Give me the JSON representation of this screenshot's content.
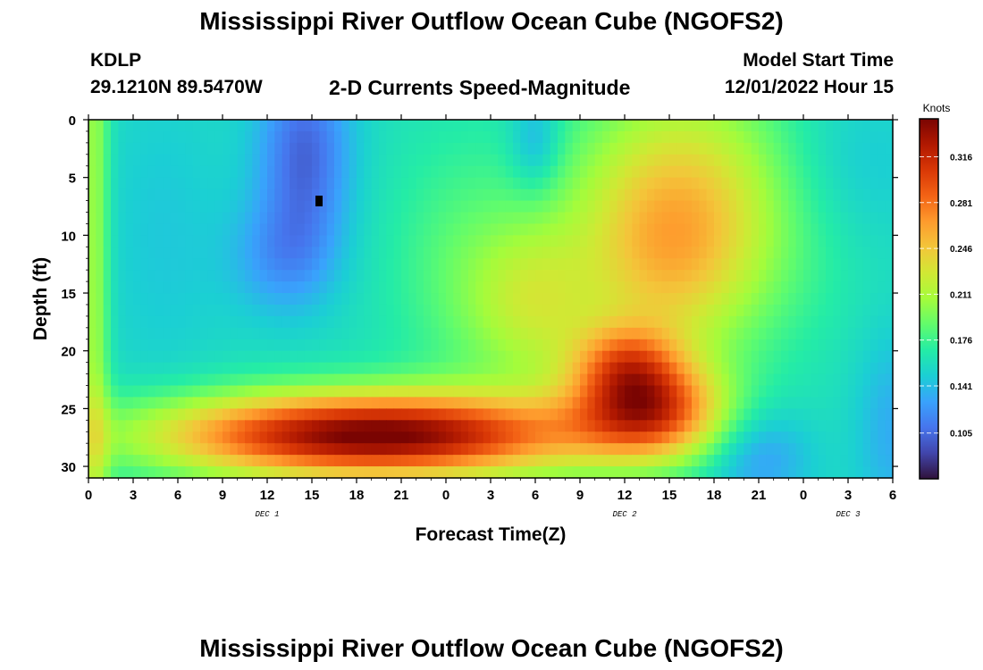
{
  "page": {
    "title": "Mississippi River Outflow Ocean Cube (NGOFS2)",
    "title_repeat": "Mississippi River Outflow Ocean Cube (NGOFS2)"
  },
  "header": {
    "station": "KDLP",
    "coords": "29.1210N  89.5470W",
    "chart_title": "2-D Currents Speed-Magnitude",
    "model_label": "Model Start Time",
    "model_time": "12/01/2022 Hour 15"
  },
  "chart_data": {
    "type": "heatmap",
    "title": "2-D Currents Speed-Magnitude",
    "xlabel": "Forecast Time(Z)",
    "ylabel": "Depth (ft)",
    "x_ticks": [
      "0",
      "3",
      "6",
      "9",
      "12",
      "15",
      "18",
      "21",
      "0",
      "3",
      "6",
      "9",
      "12",
      "15",
      "18",
      "21",
      "0",
      "3",
      "6"
    ],
    "x_range_hours": [
      0,
      54
    ],
    "y_ticks": [
      "0",
      "5",
      "10",
      "15",
      "20",
      "25",
      "30"
    ],
    "y_range_ft": [
      0,
      31
    ],
    "date_labels": [
      {
        "label": "DEC 1",
        "hour": 12
      },
      {
        "label": "DEC 2",
        "hour": 36
      },
      {
        "label": "DEC 3",
        "hour": 51
      }
    ],
    "colorbar": {
      "label": "Knots",
      "ticks": [
        "0.316",
        "0.281",
        "0.246",
        "0.211",
        "0.176",
        "0.141",
        "0.105"
      ],
      "tick_values": [
        0.316,
        0.281,
        0.246,
        0.211,
        0.176,
        0.141,
        0.105
      ],
      "range": [
        0.07,
        0.345
      ],
      "colors": [
        "#30123b",
        "#4145ab",
        "#4675ed",
        "#39a2fc",
        "#1bcfd4",
        "#24eca6",
        "#61fc6c",
        "#a4fc3b",
        "#d1e834",
        "#f3c63a",
        "#fe9b2d",
        "#f36315",
        "#d93806",
        "#b11901",
        "#7a0402"
      ]
    },
    "field_hint": "speed (knots) vs depth (ft) and forecast hour; reconstructed approximately from colors: peak ~0.33 kt near 27 ft depth around hour 18; minimum ~0.08 kt near 5 ft around hour 15"
  }
}
